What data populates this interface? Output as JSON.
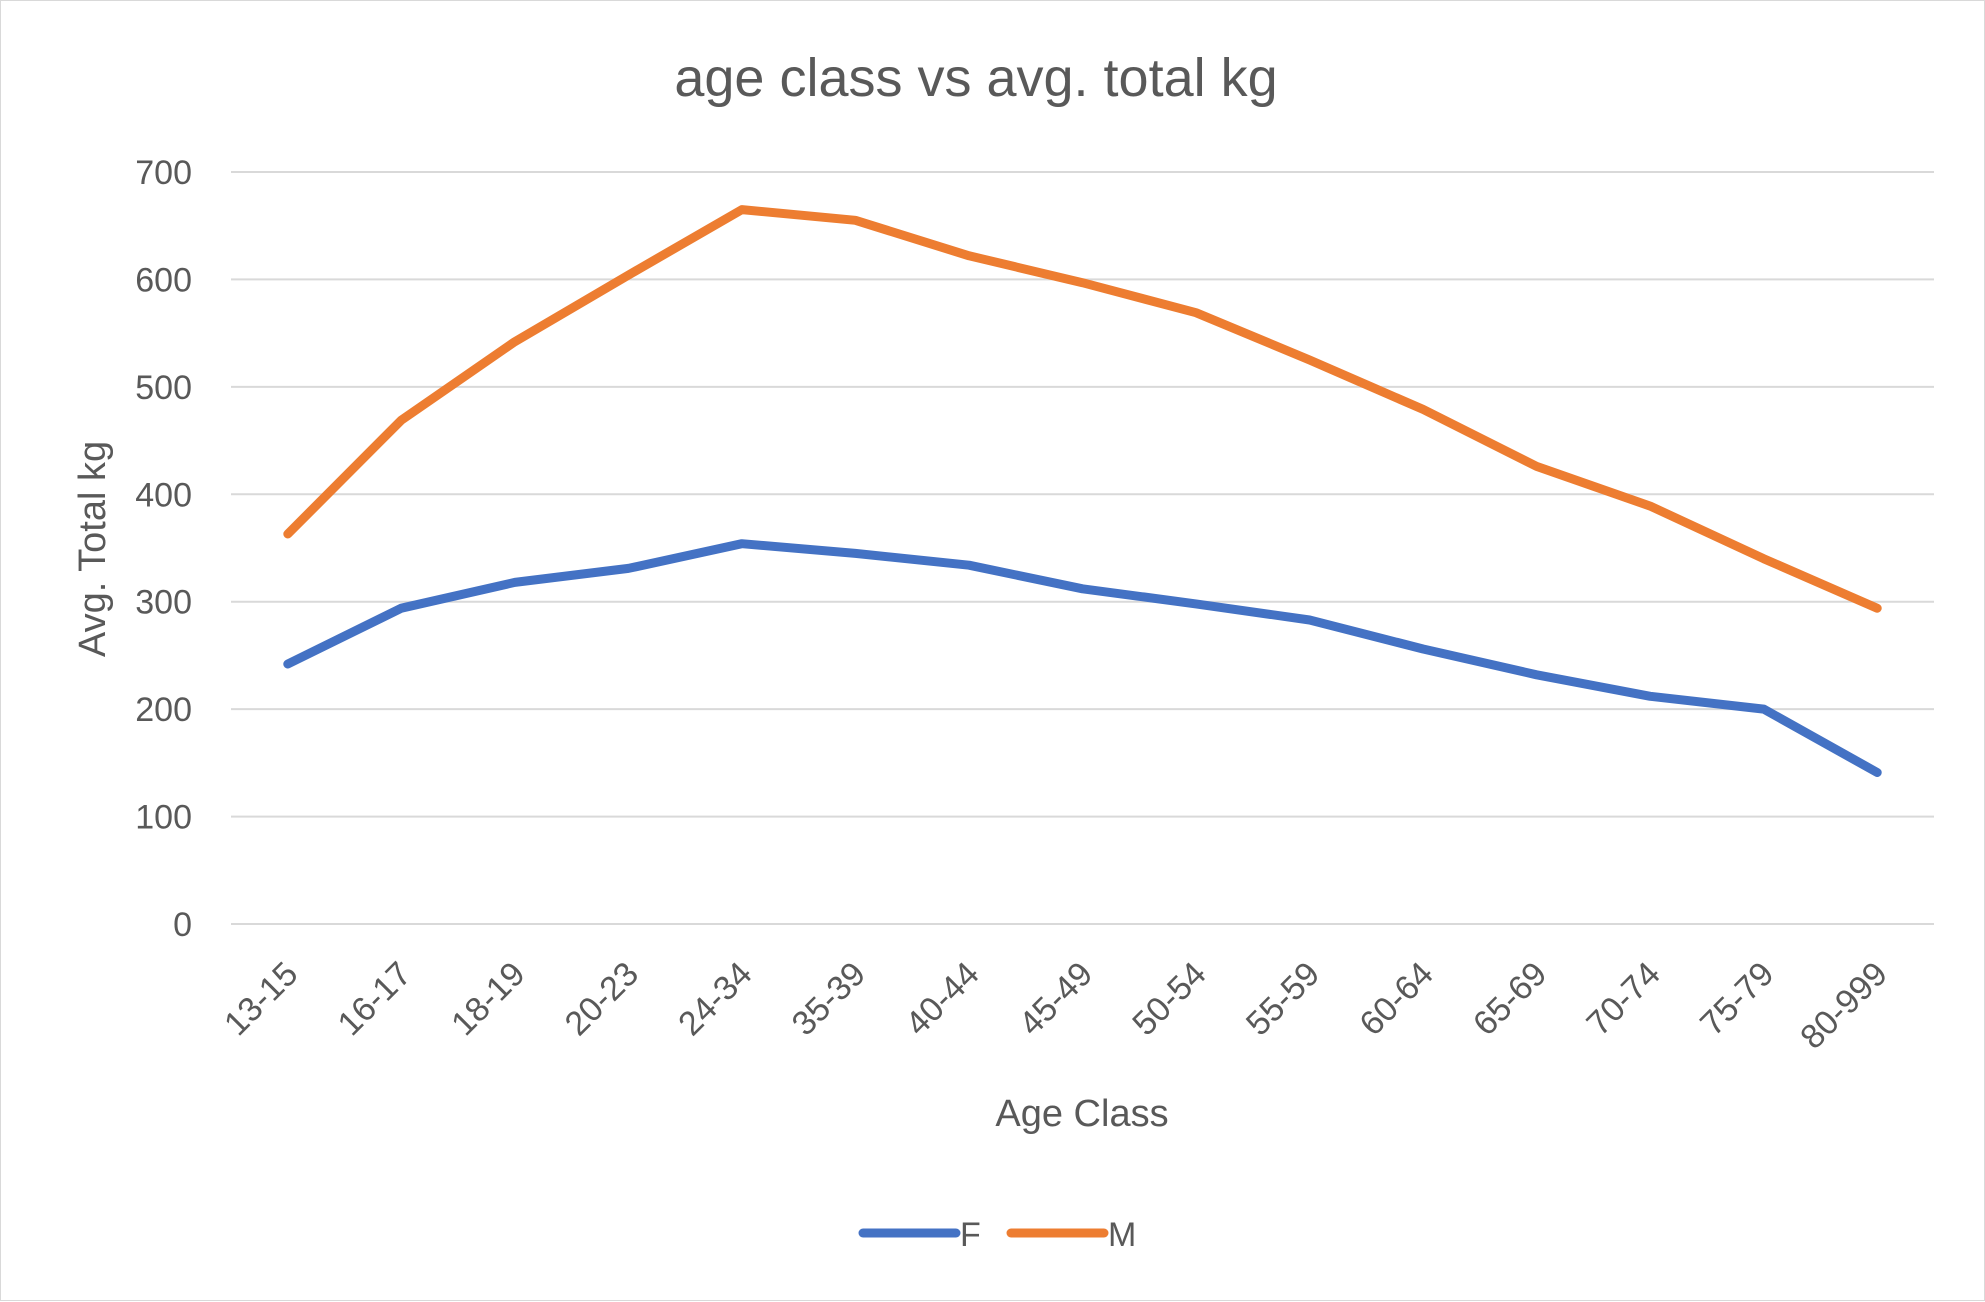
{
  "chart_data": {
    "type": "line",
    "title": "age class vs avg. total kg",
    "xlabel": "Age Class",
    "ylabel": "Avg. Total kg",
    "categories": [
      "13-15",
      "16-17",
      "18-19",
      "20-23",
      "24-34",
      "35-39",
      "40-44",
      "45-49",
      "50-54",
      "55-59",
      "60-64",
      "65-69",
      "70-74",
      "75-79",
      "80-999"
    ],
    "ylim": [
      0,
      700
    ],
    "yticks": [
      0,
      100,
      200,
      300,
      400,
      500,
      600,
      700
    ],
    "grid": true,
    "legend_position": "bottom",
    "series": [
      {
        "name": "F",
        "color": "#4472C4",
        "values": [
          242,
          294,
          318,
          331,
          354,
          345,
          334,
          312,
          298,
          283,
          256,
          232,
          212,
          200,
          141
        ]
      },
      {
        "name": "M",
        "color": "#ED7D31",
        "values": [
          363,
          469,
          542,
          604,
          665,
          655,
          622,
          597,
          569,
          525,
          479,
          426,
          389,
          340,
          294
        ]
      }
    ]
  }
}
